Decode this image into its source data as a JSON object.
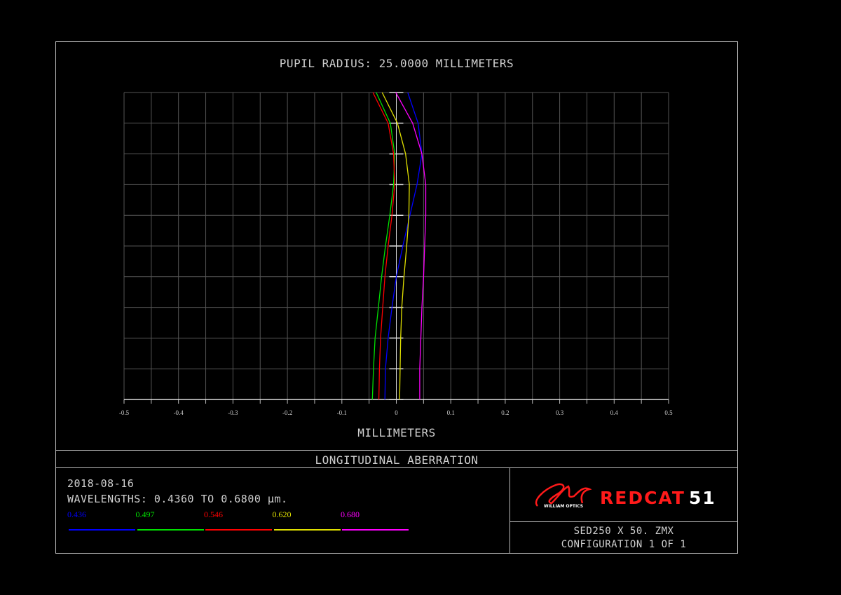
{
  "chart_data": {
    "type": "line",
    "title": "PUPIL RADIUS: 25.0000 MILLIMETERS",
    "xlabel": "MILLIMETERS",
    "ylabel": "",
    "xlim": [
      -0.5,
      0.5
    ],
    "ylim": [
      0,
      1
    ],
    "grid": true,
    "x_ticks": [
      "-0.5",
      "-0.4",
      "-0.3",
      "-0.2",
      "-0.1",
      "0",
      "0.1",
      "0.2",
      "0.3",
      "0.4",
      "0.5"
    ],
    "pupil": [
      0,
      0.1,
      0.2,
      0.3,
      0.4,
      0.5,
      0.6,
      0.7,
      0.8,
      0.9,
      1.0
    ],
    "series": [
      {
        "name": "0.436",
        "color": "#0000ff",
        "values": [
          -0.021,
          -0.02,
          -0.015,
          -0.008,
          0.0,
          0.012,
          0.025,
          0.038,
          0.047,
          0.04,
          0.021
        ]
      },
      {
        "name": "0.497",
        "color": "#00e000",
        "values": [
          -0.044,
          -0.042,
          -0.039,
          -0.033,
          -0.027,
          -0.02,
          -0.012,
          -0.005,
          -0.003,
          -0.011,
          -0.037
        ]
      },
      {
        "name": "0.546",
        "color": "#ff0000",
        "values": [
          -0.032,
          -0.031,
          -0.029,
          -0.025,
          -0.021,
          -0.015,
          -0.008,
          -0.003,
          -0.005,
          -0.015,
          -0.043
        ]
      },
      {
        "name": "0.620",
        "color": "#e0e000",
        "values": [
          0.006,
          0.007,
          0.008,
          0.01,
          0.014,
          0.019,
          0.023,
          0.024,
          0.017,
          0.002,
          -0.026
        ]
      },
      {
        "name": "0.680",
        "color": "#ff00ff",
        "values": [
          0.043,
          0.043,
          0.045,
          0.047,
          0.05,
          0.052,
          0.054,
          0.054,
          0.047,
          0.03,
          -0.001
        ]
      }
    ]
  },
  "footer": {
    "plot_name": "LONGITUDINAL ABERRATION",
    "date": "2018-08-16",
    "wavelengths": "WAVELENGTHS: 0.4360 TO 0.6800 µm.",
    "brand_name": "REDCAT",
    "brand_number": "51",
    "logo_text": "WILLIAM OPTICS",
    "file": "SED250 X 50. ZMX",
    "configuration": "CONFIGURATION 1 OF 1"
  }
}
